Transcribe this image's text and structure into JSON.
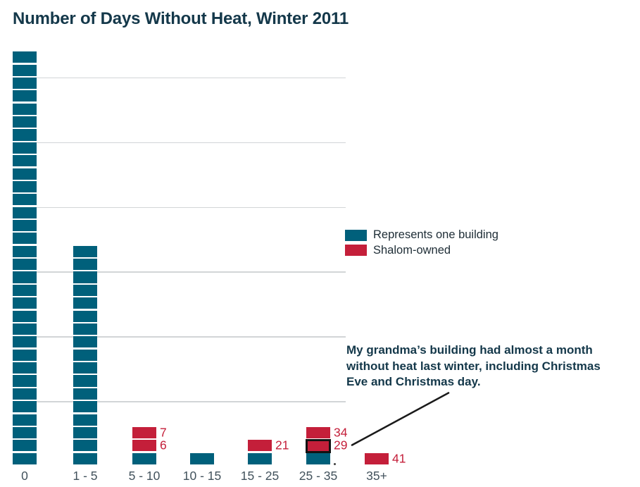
{
  "title": "Number of Days Without Heat, Winter 2011",
  "legend": {
    "items": [
      {
        "label": "Represents one building",
        "color": "#00607b"
      },
      {
        "label": "Shalom-owned",
        "color": "#c41f3a"
      }
    ]
  },
  "annotation": {
    "lines": [
      "My grandma’s building had almost a month",
      "without heat last winter, including Christmas",
      "Eve and Christmas day."
    ]
  },
  "misc": {
    "stray_mark": "."
  },
  "colors": {
    "building": "#00607b",
    "shalom": "#c41f3a",
    "grid": "#d2d5d7",
    "title_text": "#14384a",
    "annotation_text": "#14384a",
    "axis_text": "#42525c",
    "value_text": "#c41f3a",
    "legend_text": "#1e2d36",
    "leader_line": "#1a1a1a",
    "highlight_border": "#121212",
    "stray_dot": "#3f3f3f"
  },
  "chart_data": {
    "type": "bar",
    "variant": "unit-stacked isotype (one square = one building)",
    "title": "Number of Days Without Heat, Winter 2011",
    "categories": [
      "0",
      "1 - 5",
      "5 - 10",
      "10 - 15",
      "15 - 25",
      "25 - 35",
      "35+"
    ],
    "values": [
      32,
      17,
      3,
      1,
      2,
      3,
      1
    ],
    "series": [
      {
        "name": "Represents one building",
        "values": [
          32,
          17,
          1,
          1,
          1,
          1,
          0
        ]
      },
      {
        "name": "Shalom-owned",
        "values": [
          0,
          0,
          2,
          0,
          1,
          2,
          1
        ]
      }
    ],
    "columns": [
      {
        "category": "0",
        "shalom": [],
        "buildings": 32
      },
      {
        "category": "1 - 5",
        "shalom": [],
        "buildings": 17
      },
      {
        "category": "5 - 10",
        "shalom": [
          {
            "value": 7
          },
          {
            "value": 6
          }
        ],
        "buildings": 1
      },
      {
        "category": "10 - 15",
        "shalom": [],
        "buildings": 1
      },
      {
        "category": "15 - 25",
        "shalom": [
          {
            "value": 21
          }
        ],
        "buildings": 1
      },
      {
        "category": "25 - 35",
        "shalom": [
          {
            "value": 34
          },
          {
            "value": 29,
            "highlighted": true
          }
        ],
        "buildings": 1
      },
      {
        "category": "35+",
        "shalom": [
          {
            "value": 41
          }
        ],
        "buildings": 0
      }
    ],
    "highlighted_unit": {
      "category": "25 - 35",
      "value": 29,
      "note": "grandma's building"
    },
    "gridlines_every_n_units": 5,
    "grid": true,
    "legend_position": "right-middle",
    "xlabel": "",
    "ylabel": "",
    "ylim_units": [
      0,
      32
    ]
  }
}
